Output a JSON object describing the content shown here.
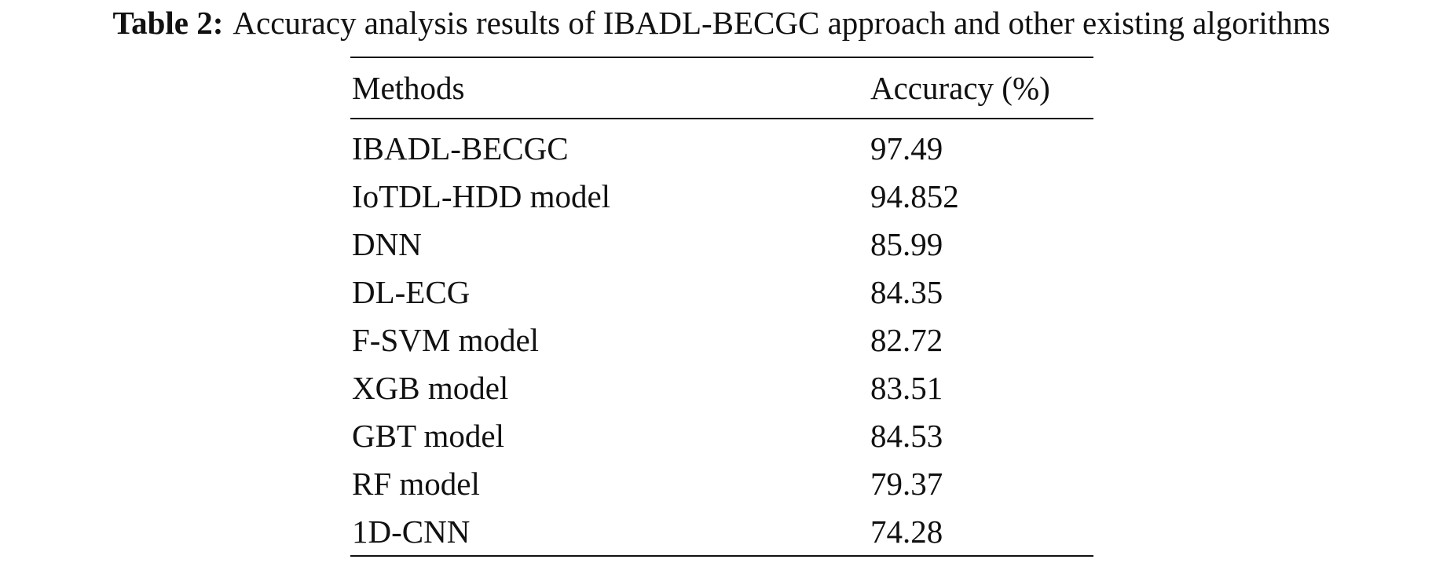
{
  "caption": {
    "label": "Table 2:",
    "text": "Accuracy analysis results of IBADL-BECGC approach and other existing algorithms"
  },
  "table": {
    "headers": [
      "Methods",
      "Accuracy (%)"
    ],
    "rows": [
      {
        "method": "IBADL-BECGC",
        "accuracy": "97.49"
      },
      {
        "method": "IoTDL-HDD model",
        "accuracy": "94.852"
      },
      {
        "method": "DNN",
        "accuracy": "85.99"
      },
      {
        "method": "DL-ECG",
        "accuracy": "84.35"
      },
      {
        "method": "F-SVM model",
        "accuracy": "82.72"
      },
      {
        "method": "XGB model",
        "accuracy": "83.51"
      },
      {
        "method": "GBT model",
        "accuracy": "84.53"
      },
      {
        "method": "RF model",
        "accuracy": "79.37"
      },
      {
        "method": "1D-CNN",
        "accuracy": "74.28"
      }
    ]
  }
}
